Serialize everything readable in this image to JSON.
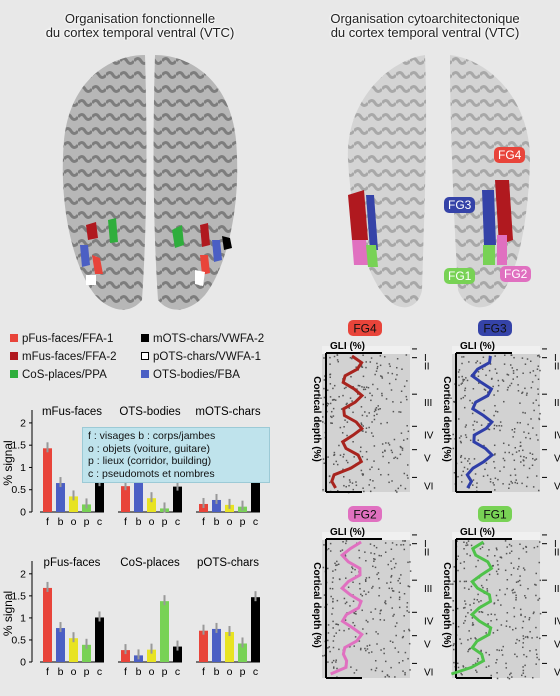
{
  "titles": {
    "functional": [
      "Organisation fonctionnelle",
      "du cortex temporal ventral (VTC)"
    ],
    "cyto": [
      "Organisation cytoarchitectonique",
      "du cortex temporal ventral (VTC)"
    ]
  },
  "legend": [
    {
      "label": "pFus-faces/FFA-1",
      "color": "#e8443a",
      "hollow": false
    },
    {
      "label": "mOTS-chars/VWFA-2",
      "color": "#000000",
      "hollow": false
    },
    {
      "label": "mFus-faces/FFA-2",
      "color": "#b0191f",
      "hollow": false
    },
    {
      "label": "pOTS-chars/VWFA-1",
      "color": "#ffffff",
      "hollow": true
    },
    {
      "label": "CoS-places/PPA",
      "color": "#2fae3c",
      "hollow": false
    },
    {
      "label": "OTS-bodies/FBA",
      "color": "#4b5fc4",
      "hollow": false
    }
  ],
  "key": [
    "f : visages  b : corps/jambes",
    "o : objets (voiture, guitare)",
    "p : lieux (corridor, building)",
    "c : pseudomots et nombres"
  ],
  "chart_ylabel": "% signal",
  "chart_data": [
    {
      "type": "bar",
      "title": "mFus-faces",
      "categories": [
        "f",
        "b",
        "o",
        "p",
        "c"
      ],
      "values": [
        1.43,
        0.65,
        0.35,
        0.17,
        0.67
      ],
      "ylim": [
        0,
        2.2
      ]
    },
    {
      "type": "bar",
      "title": "OTS-bodies",
      "categories": [
        "f",
        "b",
        "o",
        "p",
        "c"
      ],
      "values": [
        0.58,
        0.85,
        0.31,
        0.08,
        0.57
      ],
      "ylim": [
        0,
        2.2
      ]
    },
    {
      "type": "bar",
      "title": "mOTS-chars",
      "categories": [
        "f",
        "b",
        "o",
        "p",
        "c"
      ],
      "values": [
        0.18,
        0.27,
        0.16,
        0.12,
        1.08
      ],
      "ylim": [
        0,
        2.2
      ]
    },
    {
      "type": "bar",
      "title": "pFus-faces",
      "categories": [
        "f",
        "b",
        "o",
        "p",
        "c"
      ],
      "values": [
        1.68,
        0.77,
        0.54,
        0.39,
        1.01
      ],
      "ylim": [
        0,
        2.2
      ]
    },
    {
      "type": "bar",
      "title": "CoS-places",
      "categories": [
        "f",
        "b",
        "o",
        "p",
        "c"
      ],
      "values": [
        0.27,
        0.15,
        0.28,
        1.38,
        0.35
      ],
      "ylim": [
        0,
        2.2
      ]
    },
    {
      "type": "bar",
      "title": "pOTS-chars",
      "categories": [
        "f",
        "b",
        "o",
        "p",
        "c"
      ],
      "values": [
        0.71,
        0.75,
        0.68,
        0.42,
        1.47
      ],
      "ylim": [
        0,
        2.2
      ]
    }
  ],
  "bar_colors": [
    "#e8443a",
    "#4b5fc4",
    "#e8e322",
    "#78d255",
    "#000000"
  ],
  "y_ticks": [
    "0",
    "0.5",
    "1",
    "1.5",
    "2"
  ],
  "brain_tags": [
    {
      "label": "FG4",
      "color": "#e8443a"
    },
    {
      "label": "FG3",
      "color": "#3543a8"
    },
    {
      "label": "FG1",
      "color": "#78d255"
    },
    {
      "label": "FG2",
      "color": "#e070c0"
    }
  ],
  "histo": [
    {
      "tag": "FG4",
      "color": "#e8443a",
      "line": "#a8241e"
    },
    {
      "tag": "FG3",
      "color": "#3543a8",
      "line": "#2f3ea8"
    },
    {
      "tag": "FG2",
      "color": "#e070c0",
      "line": "#e070c0"
    },
    {
      "tag": "FG1",
      "color": "#78d255",
      "line": "#4fc24a"
    }
  ],
  "gli_label": "GLI (%)",
  "depth_label": "Cortical depth (%)",
  "layers": [
    "I",
    "II",
    "III",
    "IV",
    "V",
    "VI"
  ]
}
